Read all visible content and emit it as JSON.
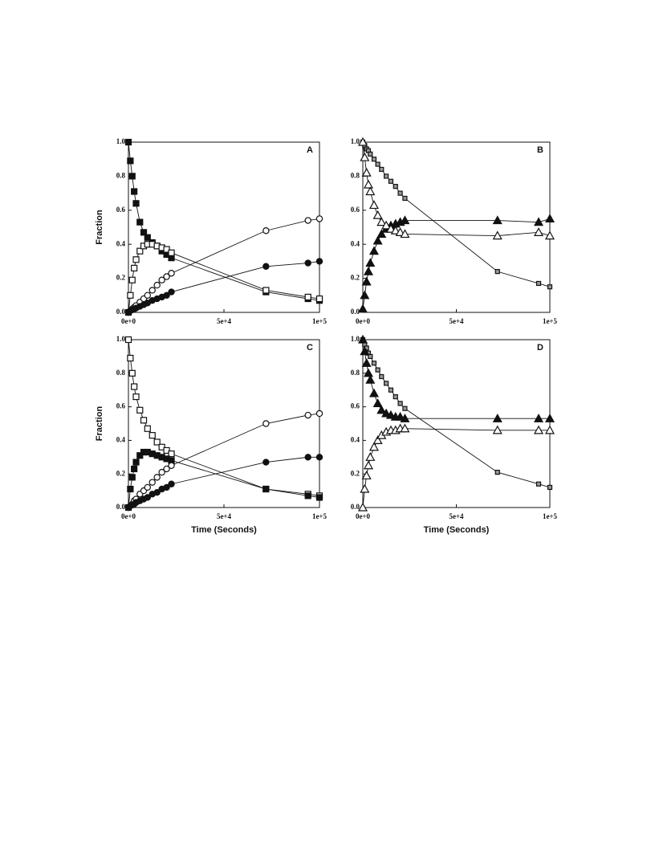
{
  "chart_data": [
    {
      "type": "scatter",
      "label": "A",
      "ylabel": "Fraction",
      "x": [
        0,
        1000,
        2000,
        3000,
        4000,
        6000,
        8000,
        10000,
        12500,
        15000,
        17500,
        20000,
        22500,
        72000,
        94000,
        100000
      ],
      "xlim": [
        0,
        100000
      ],
      "ylim": [
        0,
        1
      ],
      "xticks": [
        {
          "value": 0,
          "label": "0e+0"
        },
        {
          "value": 50000,
          "label": "5e+4"
        },
        {
          "value": 100000,
          "label": "1e+5"
        }
      ],
      "yticks": [
        {
          "value": 0,
          "label": "0.0"
        },
        0.2,
        0.4,
        0.6,
        0.8,
        {
          "value": 1,
          "label": "1.0"
        }
      ],
      "series": [
        {
          "marker": "square-filled",
          "color": "#111111",
          "values": [
            1.0,
            0.89,
            0.8,
            0.71,
            0.64,
            0.53,
            0.47,
            0.44,
            0.41,
            0.39,
            0.36,
            0.34,
            0.32,
            0.12,
            0.08,
            0.07
          ]
        },
        {
          "marker": "square-open",
          "color": "#111111",
          "values": [
            0.0,
            0.1,
            0.19,
            0.26,
            0.31,
            0.36,
            0.39,
            0.4,
            0.4,
            0.39,
            0.38,
            0.37,
            0.35,
            0.13,
            0.09,
            0.08
          ]
        },
        {
          "marker": "circle-open",
          "color": "#111111",
          "values": [
            0.0,
            0.01,
            0.02,
            0.03,
            0.04,
            0.06,
            0.08,
            0.1,
            0.13,
            0.16,
            0.19,
            0.21,
            0.23,
            0.48,
            0.54,
            0.55
          ]
        },
        {
          "marker": "circle-filled",
          "color": "#111111",
          "values": [
            0.0,
            0.01,
            0.015,
            0.02,
            0.025,
            0.035,
            0.045,
            0.055,
            0.07,
            0.08,
            0.09,
            0.1,
            0.12,
            0.27,
            0.29,
            0.3
          ]
        }
      ]
    },
    {
      "type": "scatter",
      "label": "B",
      "x": [
        0,
        1000,
        2000,
        3000,
        4000,
        6000,
        8000,
        10000,
        12500,
        15000,
        17500,
        20000,
        22500,
        72000,
        94000,
        100000
      ],
      "xlim": [
        0,
        100000
      ],
      "ylim": [
        0,
        1
      ],
      "xticks": [
        {
          "value": 0,
          "label": "0e+0"
        },
        {
          "value": 50000,
          "label": "5e+4"
        },
        {
          "value": 100000,
          "label": "1e+5"
        }
      ],
      "yticks": [
        {
          "value": 0,
          "label": "0.0"
        },
        0.2,
        0.4,
        0.6,
        0.8,
        {
          "value": 1,
          "label": "1.0"
        }
      ],
      "series": [
        {
          "marker": "square-small",
          "color": "#111111",
          "values": [
            1.0,
            0.98,
            0.96,
            0.95,
            0.93,
            0.9,
            0.87,
            0.84,
            0.8,
            0.77,
            0.74,
            0.7,
            0.67,
            0.24,
            0.17,
            0.15
          ]
        },
        {
          "marker": "triangle-filled",
          "color": "#111111",
          "values": [
            0.02,
            0.1,
            0.18,
            0.24,
            0.29,
            0.36,
            0.42,
            0.46,
            0.49,
            0.51,
            0.52,
            0.53,
            0.54,
            0.54,
            0.53,
            0.55
          ]
        },
        {
          "marker": "triangle-open",
          "color": "#111111",
          "values": [
            1.0,
            0.91,
            0.82,
            0.75,
            0.71,
            0.63,
            0.57,
            0.53,
            0.51,
            0.49,
            0.48,
            0.47,
            0.46,
            0.45,
            0.47,
            0.45
          ]
        }
      ]
    },
    {
      "type": "scatter",
      "label": "C",
      "ylabel": "Fraction",
      "xlabel": "Time (Seconds)",
      "x": [
        0,
        1000,
        2000,
        3000,
        4000,
        6000,
        8000,
        10000,
        12500,
        15000,
        17500,
        20000,
        22500,
        72000,
        94000,
        100000
      ],
      "xlim": [
        0,
        100000
      ],
      "ylim": [
        0,
        1
      ],
      "xticks": [
        {
          "value": 0,
          "label": "0e+0"
        },
        {
          "value": 50000,
          "label": "5e+4"
        },
        {
          "value": 100000,
          "label": "1e+5"
        }
      ],
      "yticks": [
        {
          "value": 0,
          "label": "0.0"
        },
        0.2,
        0.4,
        0.6,
        0.8,
        {
          "value": 1,
          "label": "1.0"
        }
      ],
      "series": [
        {
          "marker": "square-open",
          "color": "#111111",
          "values": [
            1.0,
            0.89,
            0.8,
            0.72,
            0.66,
            0.58,
            0.52,
            0.47,
            0.43,
            0.39,
            0.36,
            0.34,
            0.32,
            0.11,
            0.08,
            0.07
          ]
        },
        {
          "marker": "square-filled",
          "color": "#111111",
          "values": [
            0.0,
            0.11,
            0.18,
            0.23,
            0.27,
            0.31,
            0.33,
            0.33,
            0.32,
            0.31,
            0.3,
            0.29,
            0.28,
            0.11,
            0.07,
            0.06
          ]
        },
        {
          "marker": "circle-open",
          "color": "#111111",
          "values": [
            0.0,
            0.01,
            0.02,
            0.04,
            0.05,
            0.08,
            0.1,
            0.12,
            0.15,
            0.18,
            0.21,
            0.23,
            0.25,
            0.5,
            0.55,
            0.56
          ]
        },
        {
          "marker": "circle-filled",
          "color": "#111111",
          "values": [
            0.0,
            0.01,
            0.015,
            0.02,
            0.03,
            0.04,
            0.05,
            0.06,
            0.08,
            0.09,
            0.11,
            0.12,
            0.14,
            0.27,
            0.3,
            0.3
          ]
        }
      ]
    },
    {
      "type": "scatter",
      "label": "D",
      "xlabel": "Time (Seconds)",
      "x": [
        0,
        1000,
        2000,
        3000,
        4000,
        6000,
        8000,
        10000,
        12500,
        15000,
        17500,
        20000,
        22500,
        72000,
        94000,
        100000
      ],
      "xlim": [
        0,
        100000
      ],
      "ylim": [
        0,
        1
      ],
      "xticks": [
        {
          "value": 0,
          "label": "0e+0"
        },
        {
          "value": 50000,
          "label": "5e+4"
        },
        {
          "value": 100000,
          "label": "1e+5"
        }
      ],
      "yticks": [
        {
          "value": 0,
          "label": "0.0"
        },
        0.2,
        0.4,
        0.6,
        0.8,
        {
          "value": 1,
          "label": "1.0"
        }
      ],
      "series": [
        {
          "marker": "square-small",
          "color": "#111111",
          "values": [
            1.0,
            0.97,
            0.95,
            0.92,
            0.9,
            0.86,
            0.82,
            0.78,
            0.74,
            0.7,
            0.66,
            0.62,
            0.59,
            0.21,
            0.14,
            0.12
          ]
        },
        {
          "marker": "triangle-filled",
          "color": "#111111",
          "values": [
            1.0,
            0.93,
            0.86,
            0.8,
            0.76,
            0.68,
            0.62,
            0.58,
            0.56,
            0.55,
            0.54,
            0.54,
            0.53,
            0.53,
            0.53,
            0.53
          ]
        },
        {
          "marker": "triangle-open",
          "color": "#111111",
          "values": [
            0.0,
            0.11,
            0.19,
            0.25,
            0.3,
            0.36,
            0.4,
            0.43,
            0.45,
            0.46,
            0.46,
            0.47,
            0.47,
            0.46,
            0.46,
            0.46
          ]
        }
      ]
    }
  ]
}
